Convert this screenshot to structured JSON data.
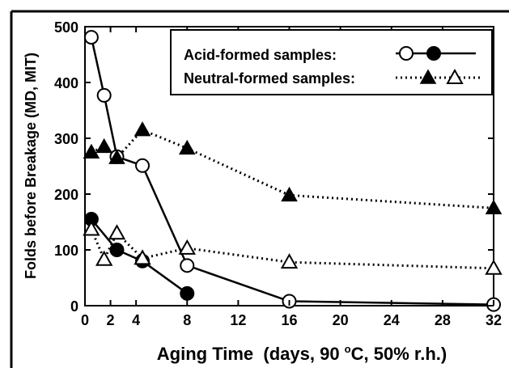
{
  "chart_data": {
    "type": "line",
    "xlabel_main": "Aging Time  (days, 90 ",
    "xlabel_sup": "o",
    "xlabel_tail": "C, 50% r.h.)",
    "ylabel": "Folds before Breakage  (MD, MIT)",
    "xlim": [
      0,
      32
    ],
    "ylim": [
      0,
      500
    ],
    "x_ticks": [
      0,
      2,
      4,
      8,
      12,
      16,
      20,
      24,
      28,
      32
    ],
    "y_ticks": [
      0,
      100,
      200,
      300,
      400,
      500
    ],
    "grid": false,
    "legend_position": "top-right",
    "legend": [
      {
        "label": "Acid-formed samples:",
        "line": "solid",
        "markers": [
          "open-circle",
          "filled-circle"
        ]
      },
      {
        "label": "Neutral-formed samples:",
        "line": "dotted",
        "markers": [
          "filled-triangle",
          "open-triangle"
        ]
      }
    ],
    "series": [
      {
        "line": "solid",
        "marker": "open-circle",
        "points": [
          [
            0.5,
            481
          ],
          [
            1.5,
            377
          ],
          [
            2.5,
            267
          ],
          [
            4.5,
            251
          ],
          [
            8,
            72
          ],
          [
            16,
            8
          ],
          [
            32,
            2
          ]
        ]
      },
      {
        "line": "solid",
        "marker": "filled-circle",
        "points": [
          [
            0.5,
            155
          ],
          [
            2.5,
            100
          ],
          [
            4.5,
            80
          ],
          [
            8,
            22
          ]
        ]
      },
      {
        "line": "dotted",
        "marker": "filled-triangle",
        "points": [
          [
            0.5,
            275
          ],
          [
            1.5,
            285
          ],
          [
            2.5,
            265
          ],
          [
            4.5,
            315
          ],
          [
            8,
            282
          ],
          [
            16,
            198
          ],
          [
            32,
            175
          ]
        ]
      },
      {
        "line": "dotted",
        "marker": "open-triangle",
        "points": [
          [
            0.5,
            137
          ],
          [
            1.5,
            83
          ],
          [
            2.5,
            130
          ],
          [
            4.5,
            85
          ],
          [
            8,
            103
          ],
          [
            16,
            78
          ],
          [
            32,
            67
          ]
        ]
      }
    ]
  }
}
